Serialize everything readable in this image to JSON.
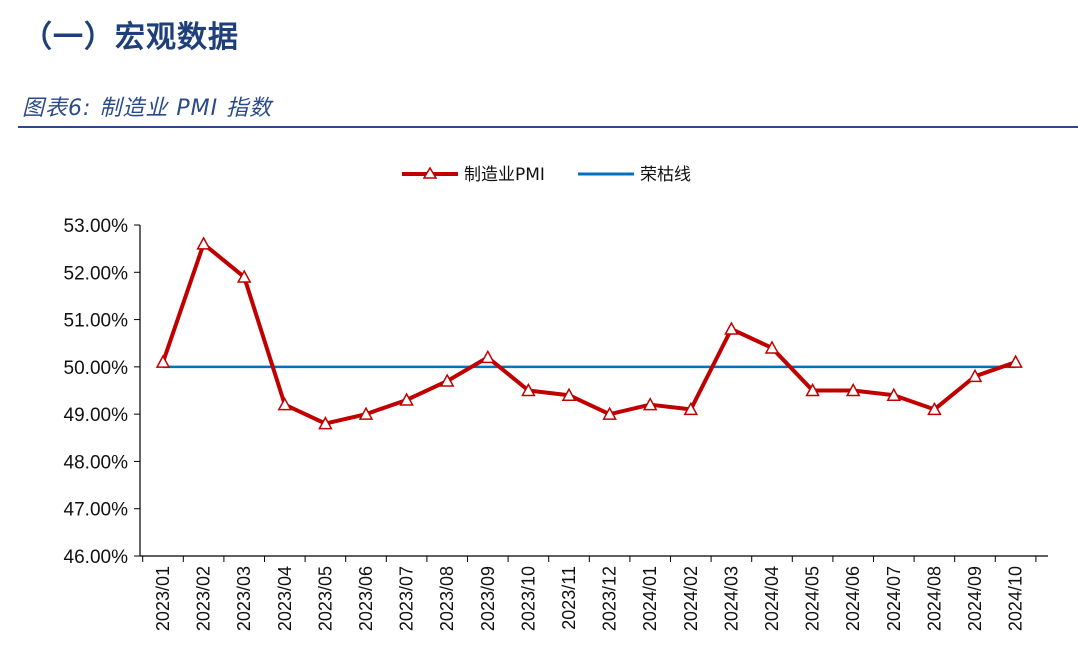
{
  "header": {
    "section_title": "（一）宏观数据",
    "figure_title": "图表6:  制造业 PMI 指数"
  },
  "colors": {
    "pmi_line": "#c00000",
    "boom_bust_line": "#0070c0",
    "heading": "#1f3f7a"
  },
  "chart_data": {
    "type": "line",
    "title": "",
    "xlabel": "",
    "ylabel": "",
    "ylim": [
      46,
      53
    ],
    "y_tick_values": [
      46,
      47,
      48,
      49,
      50,
      51,
      52,
      53
    ],
    "y_ticks": [
      "46.00%",
      "47.00%",
      "48.00%",
      "49.00%",
      "50.00%",
      "51.00%",
      "52.00%",
      "53.00%"
    ],
    "categories": [
      "2023/01",
      "2023/02",
      "2023/03",
      "2023/04",
      "2023/05",
      "2023/06",
      "2023/07",
      "2023/08",
      "2023/09",
      "2023/10",
      "2023/11",
      "2023/12",
      "2024/01",
      "2024/02",
      "2024/03",
      "2024/04",
      "2024/05",
      "2024/06",
      "2024/07",
      "2024/08",
      "2024/09",
      "2024/10"
    ],
    "series": [
      {
        "name": "制造业PMI",
        "values": [
          50.1,
          52.6,
          51.9,
          49.2,
          48.8,
          49.0,
          49.3,
          49.7,
          50.2,
          49.5,
          49.4,
          49.0,
          49.2,
          49.1,
          50.8,
          50.4,
          49.5,
          49.5,
          49.4,
          49.1,
          49.8,
          50.1
        ],
        "marker": "triangle"
      },
      {
        "name": "荣枯线",
        "values": [
          50,
          50,
          50,
          50,
          50,
          50,
          50,
          50,
          50,
          50,
          50,
          50,
          50,
          50,
          50,
          50,
          50,
          50,
          50,
          50,
          50,
          50
        ],
        "marker": "none"
      }
    ],
    "legend_position": "top-center",
    "grid": false
  }
}
